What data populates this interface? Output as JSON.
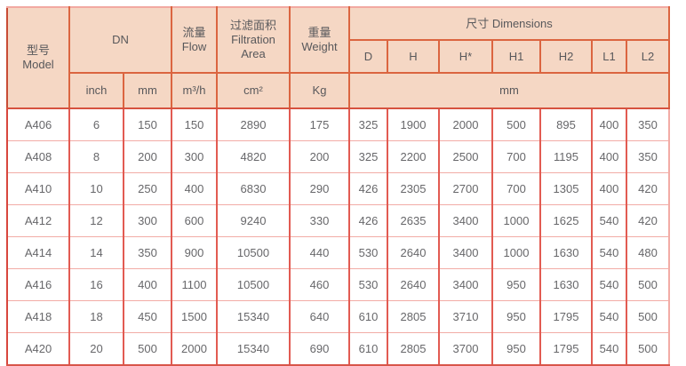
{
  "table": {
    "header": {
      "model_zh": "型号",
      "model_en": "Model",
      "dn": "DN",
      "flow_zh": "流量",
      "flow_en": "Flow",
      "filtration_zh": "过滤面积",
      "filtration_en_line1": "Filtration",
      "filtration_en_line2": "Area",
      "weight_zh": "重量",
      "weight_en": "Weight",
      "dimensions": "尺寸 Dimensions",
      "dim_cols": [
        "D",
        "H",
        "H*",
        "H1",
        "H2",
        "L1",
        "L2"
      ],
      "unit_inch": "inch",
      "unit_mm": "mm",
      "unit_flow": "m³/h",
      "unit_area": "cm²",
      "unit_weight": "Kg",
      "unit_dims": "mm"
    },
    "rows": [
      [
        "A406",
        "6",
        "150",
        "150",
        "2890",
        "175",
        "325",
        "1900",
        "2000",
        "500",
        "895",
        "400",
        "350"
      ],
      [
        "A408",
        "8",
        "200",
        "300",
        "4820",
        "200",
        "325",
        "2200",
        "2500",
        "700",
        "1195",
        "400",
        "350"
      ],
      [
        "A410",
        "10",
        "250",
        "400",
        "6830",
        "290",
        "426",
        "2305",
        "2700",
        "700",
        "1305",
        "400",
        "420"
      ],
      [
        "A412",
        "12",
        "300",
        "600",
        "9240",
        "330",
        "426",
        "2635",
        "3400",
        "1000",
        "1625",
        "540",
        "420"
      ],
      [
        "A414",
        "14",
        "350",
        "900",
        "10500",
        "440",
        "530",
        "2640",
        "3400",
        "1000",
        "1630",
        "540",
        "480"
      ],
      [
        "A416",
        "16",
        "400",
        "1100",
        "10500",
        "460",
        "530",
        "2640",
        "3400",
        "950",
        "1630",
        "540",
        "500"
      ],
      [
        "A418",
        "18",
        "450",
        "1500",
        "15340",
        "640",
        "610",
        "2805",
        "3710",
        "950",
        "1795",
        "540",
        "500"
      ],
      [
        "A420",
        "20",
        "500",
        "2000",
        "15340",
        "690",
        "610",
        "2805",
        "3700",
        "950",
        "1795",
        "540",
        "500"
      ]
    ],
    "colors": {
      "header_bg": "#f5d7c4",
      "header_border": "#db6540",
      "grid_vertical": "#e25b52",
      "grid_horizontal": "#f2aca6",
      "outer_dark": "#c84c35",
      "header_text": "#58585b",
      "body_text": "#67676a"
    }
  }
}
